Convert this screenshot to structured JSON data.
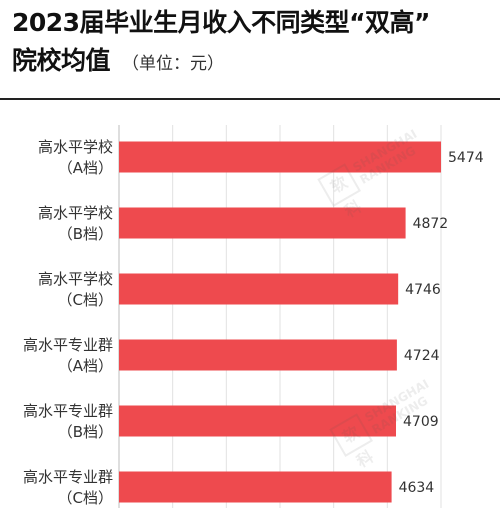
{
  "title": {
    "line1": "2023届毕业生月收入不同类型“双高”",
    "line2": "院校均值",
    "unit": "（单位：元）"
  },
  "watermark": {
    "logo_text": "软科",
    "line1": "SHANGHAI",
    "line2": "RANKING"
  },
  "chart_data": {
    "type": "bar",
    "orientation": "horizontal",
    "title": "2023届毕业生月收入不同类型“双高”院校均值",
    "unit": "（单位：元）",
    "categories": [
      [
        "高水平学校",
        "（A档）"
      ],
      [
        "高水平学校",
        "（B档）"
      ],
      [
        "高水平学校",
        "（C档）"
      ],
      [
        "高水平专业群",
        "（A档）"
      ],
      [
        "高水平专业群",
        "（B档）"
      ],
      [
        "高水平专业群",
        "（C档）"
      ]
    ],
    "values": [
      5474,
      4872,
      4746,
      4724,
      4709,
      4634
    ],
    "xlim": [
      0,
      5474
    ],
    "bar_color": "#EE4A4E",
    "grid": true,
    "data_labels": true
  }
}
